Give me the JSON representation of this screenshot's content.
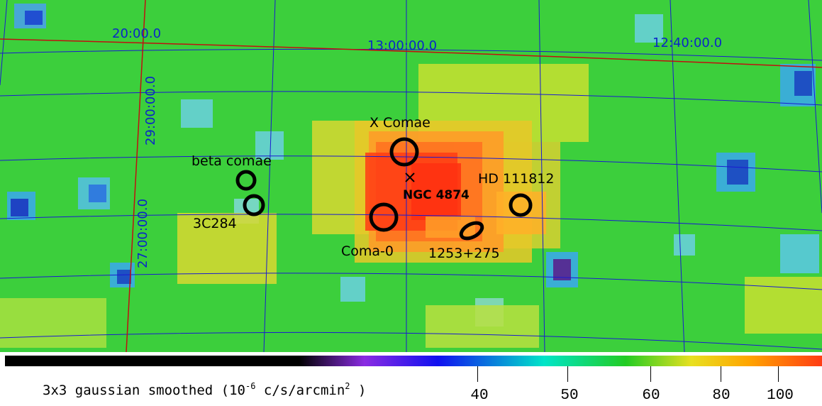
{
  "coordinate_labels": {
    "ra_20": "20:00.0",
    "ra_13": "13:00:00.0",
    "ra_1240": "12:40:00.0",
    "dec_29": "29:00:00.0",
    "dec_27": "27:00:00.0"
  },
  "sources": {
    "x_comae": "X Comae",
    "beta_comae": "beta comae",
    "hd111812": "HD 111812",
    "ngc4874": "NGC 4874",
    "c3c284": "3C284",
    "coma0": "Coma-0",
    "src1253": "1253+275"
  },
  "colorbar": {
    "caption_pre": "3x3 gaussian smoothed (10",
    "caption_exp": "-6",
    "caption_mid": " c/s/arcmin",
    "caption_exp2": "2",
    "caption_post": " )",
    "ticks": [
      "40",
      "50",
      "60",
      "80",
      "100"
    ],
    "colors": {
      "low": "#000000",
      "purple": "#8a2be2",
      "blue": "#1010f0",
      "cyan": "#00e5c8",
      "green": "#22cc22",
      "yellow": "#e8e020",
      "orange": "#ffa500",
      "red": "#ff3c14"
    }
  },
  "grid_color": "#1a1ad0",
  "ra_line_color": "#c01010"
}
